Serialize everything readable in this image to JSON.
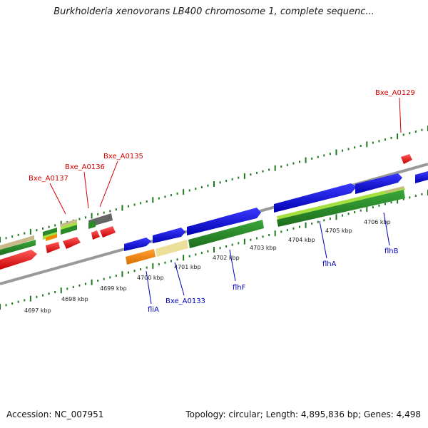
{
  "title": "Burkholderia xenovorans LB400 chromosome 1, complete sequenc...",
  "footer": {
    "accession": "Accession: NC_007951",
    "stats": "Topology: circular; Length: 4,895,836 bp; Genes: 4,498"
  },
  "ruler": [
    "4697 kbp",
    "4698 kbp",
    "4699 kbp",
    "4700 kbp",
    "4701 kbp",
    "4702 kbp",
    "4703 kbp",
    "4704 kbp",
    "4705 kbp",
    "4706 kbp"
  ],
  "red_labels": [
    "Bxe_A0137",
    "Bxe_A0136",
    "Bxe_A0135",
    "Bxe_A0129"
  ],
  "blue_labels": [
    "fliA",
    "Bxe_A0133",
    "flhF",
    "flhA",
    "flhB"
  ],
  "colors": {
    "backbone": "#8c8c8c",
    "tick": "#1e7a1e",
    "gene_red": "#e60000",
    "gene_blue": "#1010dd",
    "gene_orange": "#f08a00",
    "gene_tan": "#ecdf9a",
    "gene_green": "#2a8a2a",
    "gene_lightgreen": "#a6e040",
    "gene_gray": "#666666",
    "label_red": "#d40000",
    "label_blue": "#0000bb"
  }
}
